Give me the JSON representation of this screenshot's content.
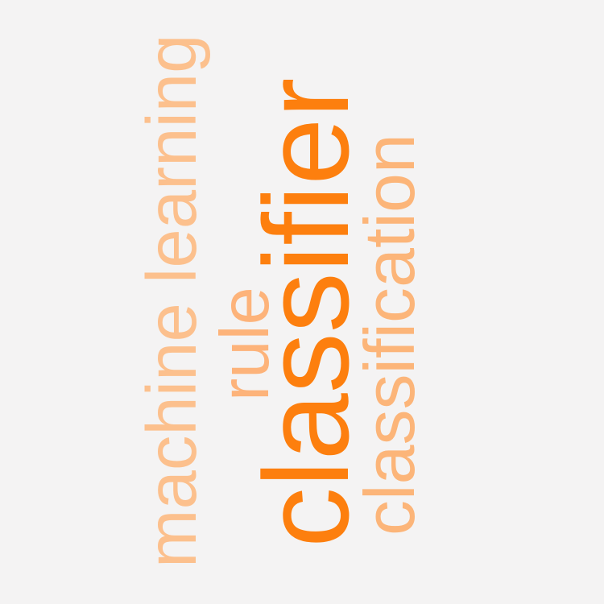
{
  "background_color": "#f4f3f3",
  "words": [
    {
      "text": "machine learning",
      "color": "#fcc08d",
      "weight": "low"
    },
    {
      "text": "rule",
      "color": "#fdb37a",
      "weight": "medium"
    },
    {
      "text": "classifier",
      "color": "#fd7f0e",
      "weight": "high"
    },
    {
      "text": "classification",
      "color": "#fcb579",
      "weight": "medium"
    }
  ]
}
